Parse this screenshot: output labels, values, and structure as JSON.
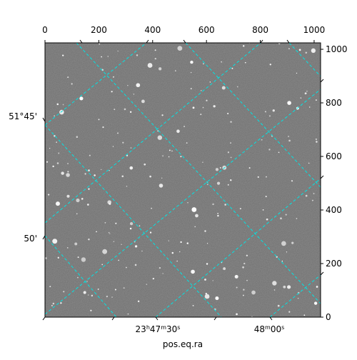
{
  "chart_data": {
    "type": "image",
    "xlabel": "pos.eq.ra",
    "xlim": [
      0,
      1024
    ],
    "ylim": [
      0,
      1024
    ],
    "xticks": [
      0,
      200,
      400,
      600,
      800,
      1000
    ],
    "yticks": [
      0,
      200,
      400,
      600,
      800,
      1000
    ],
    "world_xticks": [
      [
        "23",
        "h",
        "47",
        "m",
        "30",
        "s"
      ],
      [
        "48",
        "m",
        "00",
        "s"
      ]
    ],
    "world_yticks": [
      "51°45'",
      "50'"
    ],
    "grid_color": "#00e5e5"
  }
}
